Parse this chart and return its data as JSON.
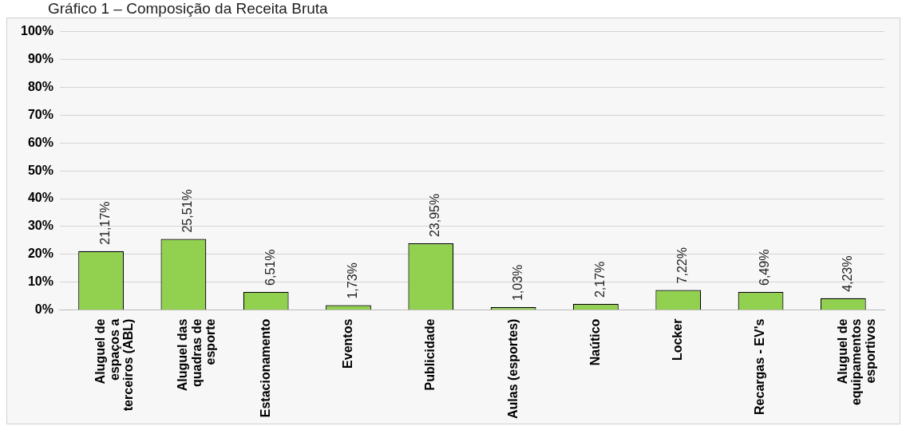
{
  "chart_data": {
    "type": "bar",
    "title": "Gráfico 1 – Composição da Receita Bruta",
    "categories": [
      "Aluguel de\nespaços a\nterceiros (ABL)",
      "Aluguel das\nquadras de\nesporte",
      "Estacionamento",
      "Eventos",
      "Publicidade",
      "Aulas (esportes)",
      "Naútico",
      "Locker",
      "Recargas - EV's",
      "Aluguel de\nequipamentos\nesportivos"
    ],
    "values": [
      21.17,
      25.51,
      6.51,
      1.73,
      23.95,
      1.03,
      2.17,
      7.22,
      6.49,
      4.23
    ],
    "value_labels": [
      "21,17%",
      "25,51%",
      "6,51%",
      "1,73%",
      "23,95%",
      "1,03%",
      "2,17%",
      "7,22%",
      "6,49%",
      "4,23%"
    ],
    "color": "#92d050",
    "ylim": [
      0,
      100
    ],
    "yticks": [
      {
        "value": 0,
        "label": "0%"
      },
      {
        "value": 10,
        "label": "10%"
      },
      {
        "value": 20,
        "label": "20%"
      },
      {
        "value": 30,
        "label": "30%"
      },
      {
        "value": 40,
        "label": "40%"
      },
      {
        "value": 50,
        "label": "50%"
      },
      {
        "value": 60,
        "label": "60%"
      },
      {
        "value": 70,
        "label": "70%"
      },
      {
        "value": 80,
        "label": "80%"
      },
      {
        "value": 90,
        "label": "90%"
      },
      {
        "value": 100,
        "label": "100%"
      }
    ],
    "grid": "y",
    "legend": false
  }
}
